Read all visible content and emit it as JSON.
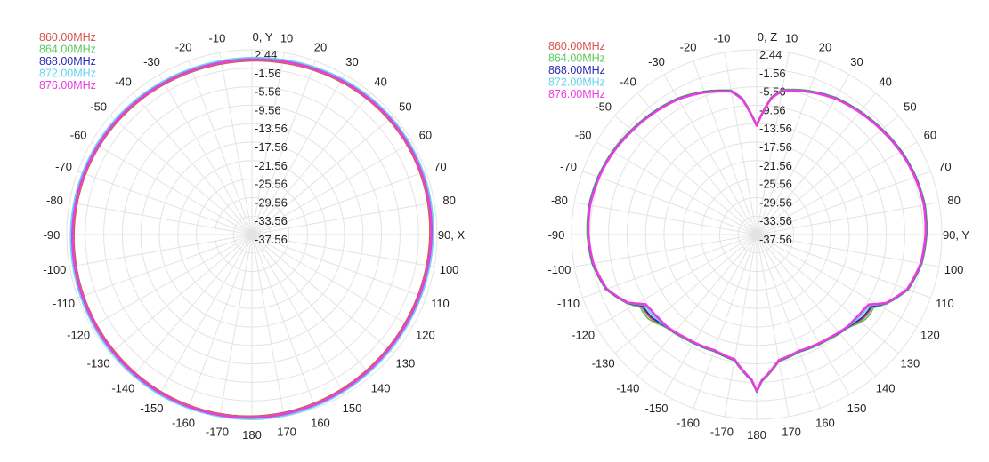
{
  "chart_data": [
    {
      "type": "polar-line",
      "axis_label_0": "0, Y",
      "axis_label_90": "90, X",
      "radial_labels": [
        "2.44",
        "-1.56",
        "-5.56",
        "-9.56",
        "-13.56",
        "-17.56",
        "-21.56",
        "-25.56",
        "-29.56",
        "-33.56",
        "-37.56"
      ],
      "angle_labels": [
        {
          "angle": -170,
          "text": "-170"
        },
        {
          "angle": -160,
          "text": "-160"
        },
        {
          "angle": -150,
          "text": "-150"
        },
        {
          "angle": -140,
          "text": "-140"
        },
        {
          "angle": -130,
          "text": "-130"
        },
        {
          "angle": -120,
          "text": "-120"
        },
        {
          "angle": -110,
          "text": "-110"
        },
        {
          "angle": -100,
          "text": "-100"
        },
        {
          "angle": -90,
          "text": "-90"
        },
        {
          "angle": -80,
          "text": "-80"
        },
        {
          "angle": -70,
          "text": "-70"
        },
        {
          "angle": -60,
          "text": "-60"
        },
        {
          "angle": -50,
          "text": "-50"
        },
        {
          "angle": -40,
          "text": "-40"
        },
        {
          "angle": -30,
          "text": "-30"
        },
        {
          "angle": -20,
          "text": "-20"
        },
        {
          "angle": -10,
          "text": "-10"
        },
        {
          "angle": 10,
          "text": "10"
        },
        {
          "angle": 20,
          "text": "20"
        },
        {
          "angle": 30,
          "text": "30"
        },
        {
          "angle": 40,
          "text": "40"
        },
        {
          "angle": 50,
          "text": "50"
        },
        {
          "angle": 60,
          "text": "60"
        },
        {
          "angle": 70,
          "text": "70"
        },
        {
          "angle": 80,
          "text": "80"
        },
        {
          "angle": 100,
          "text": "100"
        },
        {
          "angle": 110,
          "text": "110"
        },
        {
          "angle": 120,
          "text": "120"
        },
        {
          "angle": 130,
          "text": "130"
        },
        {
          "angle": 140,
          "text": "140"
        },
        {
          "angle": 150,
          "text": "150"
        },
        {
          "angle": 160,
          "text": "160"
        },
        {
          "angle": 170,
          "text": "170"
        },
        {
          "angle": 180,
          "text": "180"
        }
      ],
      "rlim": [
        -37.56,
        2.44
      ],
      "legend_placement": "top-left",
      "series": [
        {
          "name": "860.00MHz",
          "color": "#d9534f",
          "pattern": "omni",
          "offset": -0.3
        },
        {
          "name": "864.00MHz",
          "color": "#5cc85c",
          "pattern": "omni",
          "offset": -0.1
        },
        {
          "name": "868.00MHz",
          "color": "#2a2ab8",
          "pattern": "omni",
          "offset": 0.2
        },
        {
          "name": "872.00MHz",
          "color": "#66d4f0",
          "pattern": "omni",
          "offset": 0.4
        },
        {
          "name": "876.00MHz",
          "color": "#e83ee0",
          "pattern": "omni",
          "offset": 0.0
        }
      ]
    },
    {
      "type": "polar-line",
      "axis_label_0": "0, Z",
      "axis_label_90": "90, Y",
      "radial_labels": [
        "2.44",
        "-1.56",
        "-5.56",
        "-9.56",
        "-13.56",
        "-17.56",
        "-21.56",
        "-25.56",
        "-29.56",
        "-33.56",
        "-37.56"
      ],
      "angle_labels": [
        {
          "angle": -170,
          "text": "-170"
        },
        {
          "angle": -160,
          "text": "-160"
        },
        {
          "angle": -150,
          "text": "-150"
        },
        {
          "angle": -140,
          "text": "-140"
        },
        {
          "angle": -130,
          "text": "-130"
        },
        {
          "angle": -120,
          "text": "-120"
        },
        {
          "angle": -110,
          "text": "-110"
        },
        {
          "angle": -100,
          "text": "-100"
        },
        {
          "angle": -90,
          "text": "-90"
        },
        {
          "angle": -80,
          "text": "-80"
        },
        {
          "angle": -70,
          "text": "-70"
        },
        {
          "angle": -60,
          "text": "-60"
        },
        {
          "angle": -50,
          "text": "-50"
        },
        {
          "angle": -40,
          "text": "-40"
        },
        {
          "angle": -30,
          "text": "-30"
        },
        {
          "angle": -20,
          "text": "-20"
        },
        {
          "angle": -10,
          "text": "-10"
        },
        {
          "angle": 10,
          "text": "10"
        },
        {
          "angle": 20,
          "text": "20"
        },
        {
          "angle": 30,
          "text": "30"
        },
        {
          "angle": 40,
          "text": "40"
        },
        {
          "angle": 50,
          "text": "50"
        },
        {
          "angle": 60,
          "text": "60"
        },
        {
          "angle": 70,
          "text": "70"
        },
        {
          "angle": 80,
          "text": "80"
        },
        {
          "angle": 100,
          "text": "100"
        },
        {
          "angle": 110,
          "text": "110"
        },
        {
          "angle": 120,
          "text": "120"
        },
        {
          "angle": 130,
          "text": "130"
        },
        {
          "angle": 140,
          "text": "140"
        },
        {
          "angle": 150,
          "text": "150"
        },
        {
          "angle": 160,
          "text": "160"
        },
        {
          "angle": 170,
          "text": "170"
        },
        {
          "angle": 180,
          "text": "180"
        }
      ],
      "rlim": [
        -37.56,
        2.44
      ],
      "legend_placement": "top-left",
      "series": [
        {
          "name": "860.00MHz",
          "color": "#d9534f",
          "pattern": "heart",
          "offset": 0.3
        },
        {
          "name": "864.00MHz",
          "color": "#5cc85c",
          "pattern": "heart",
          "offset": 0.6
        },
        {
          "name": "868.00MHz",
          "color": "#2a2ab8",
          "pattern": "heart",
          "offset": 0.1
        },
        {
          "name": "872.00MHz",
          "color": "#66d4f0",
          "pattern": "heart",
          "offset": -0.2
        },
        {
          "name": "876.00MHz",
          "color": "#e83ee0",
          "pattern": "heart",
          "offset": -0.5
        }
      ]
    }
  ]
}
